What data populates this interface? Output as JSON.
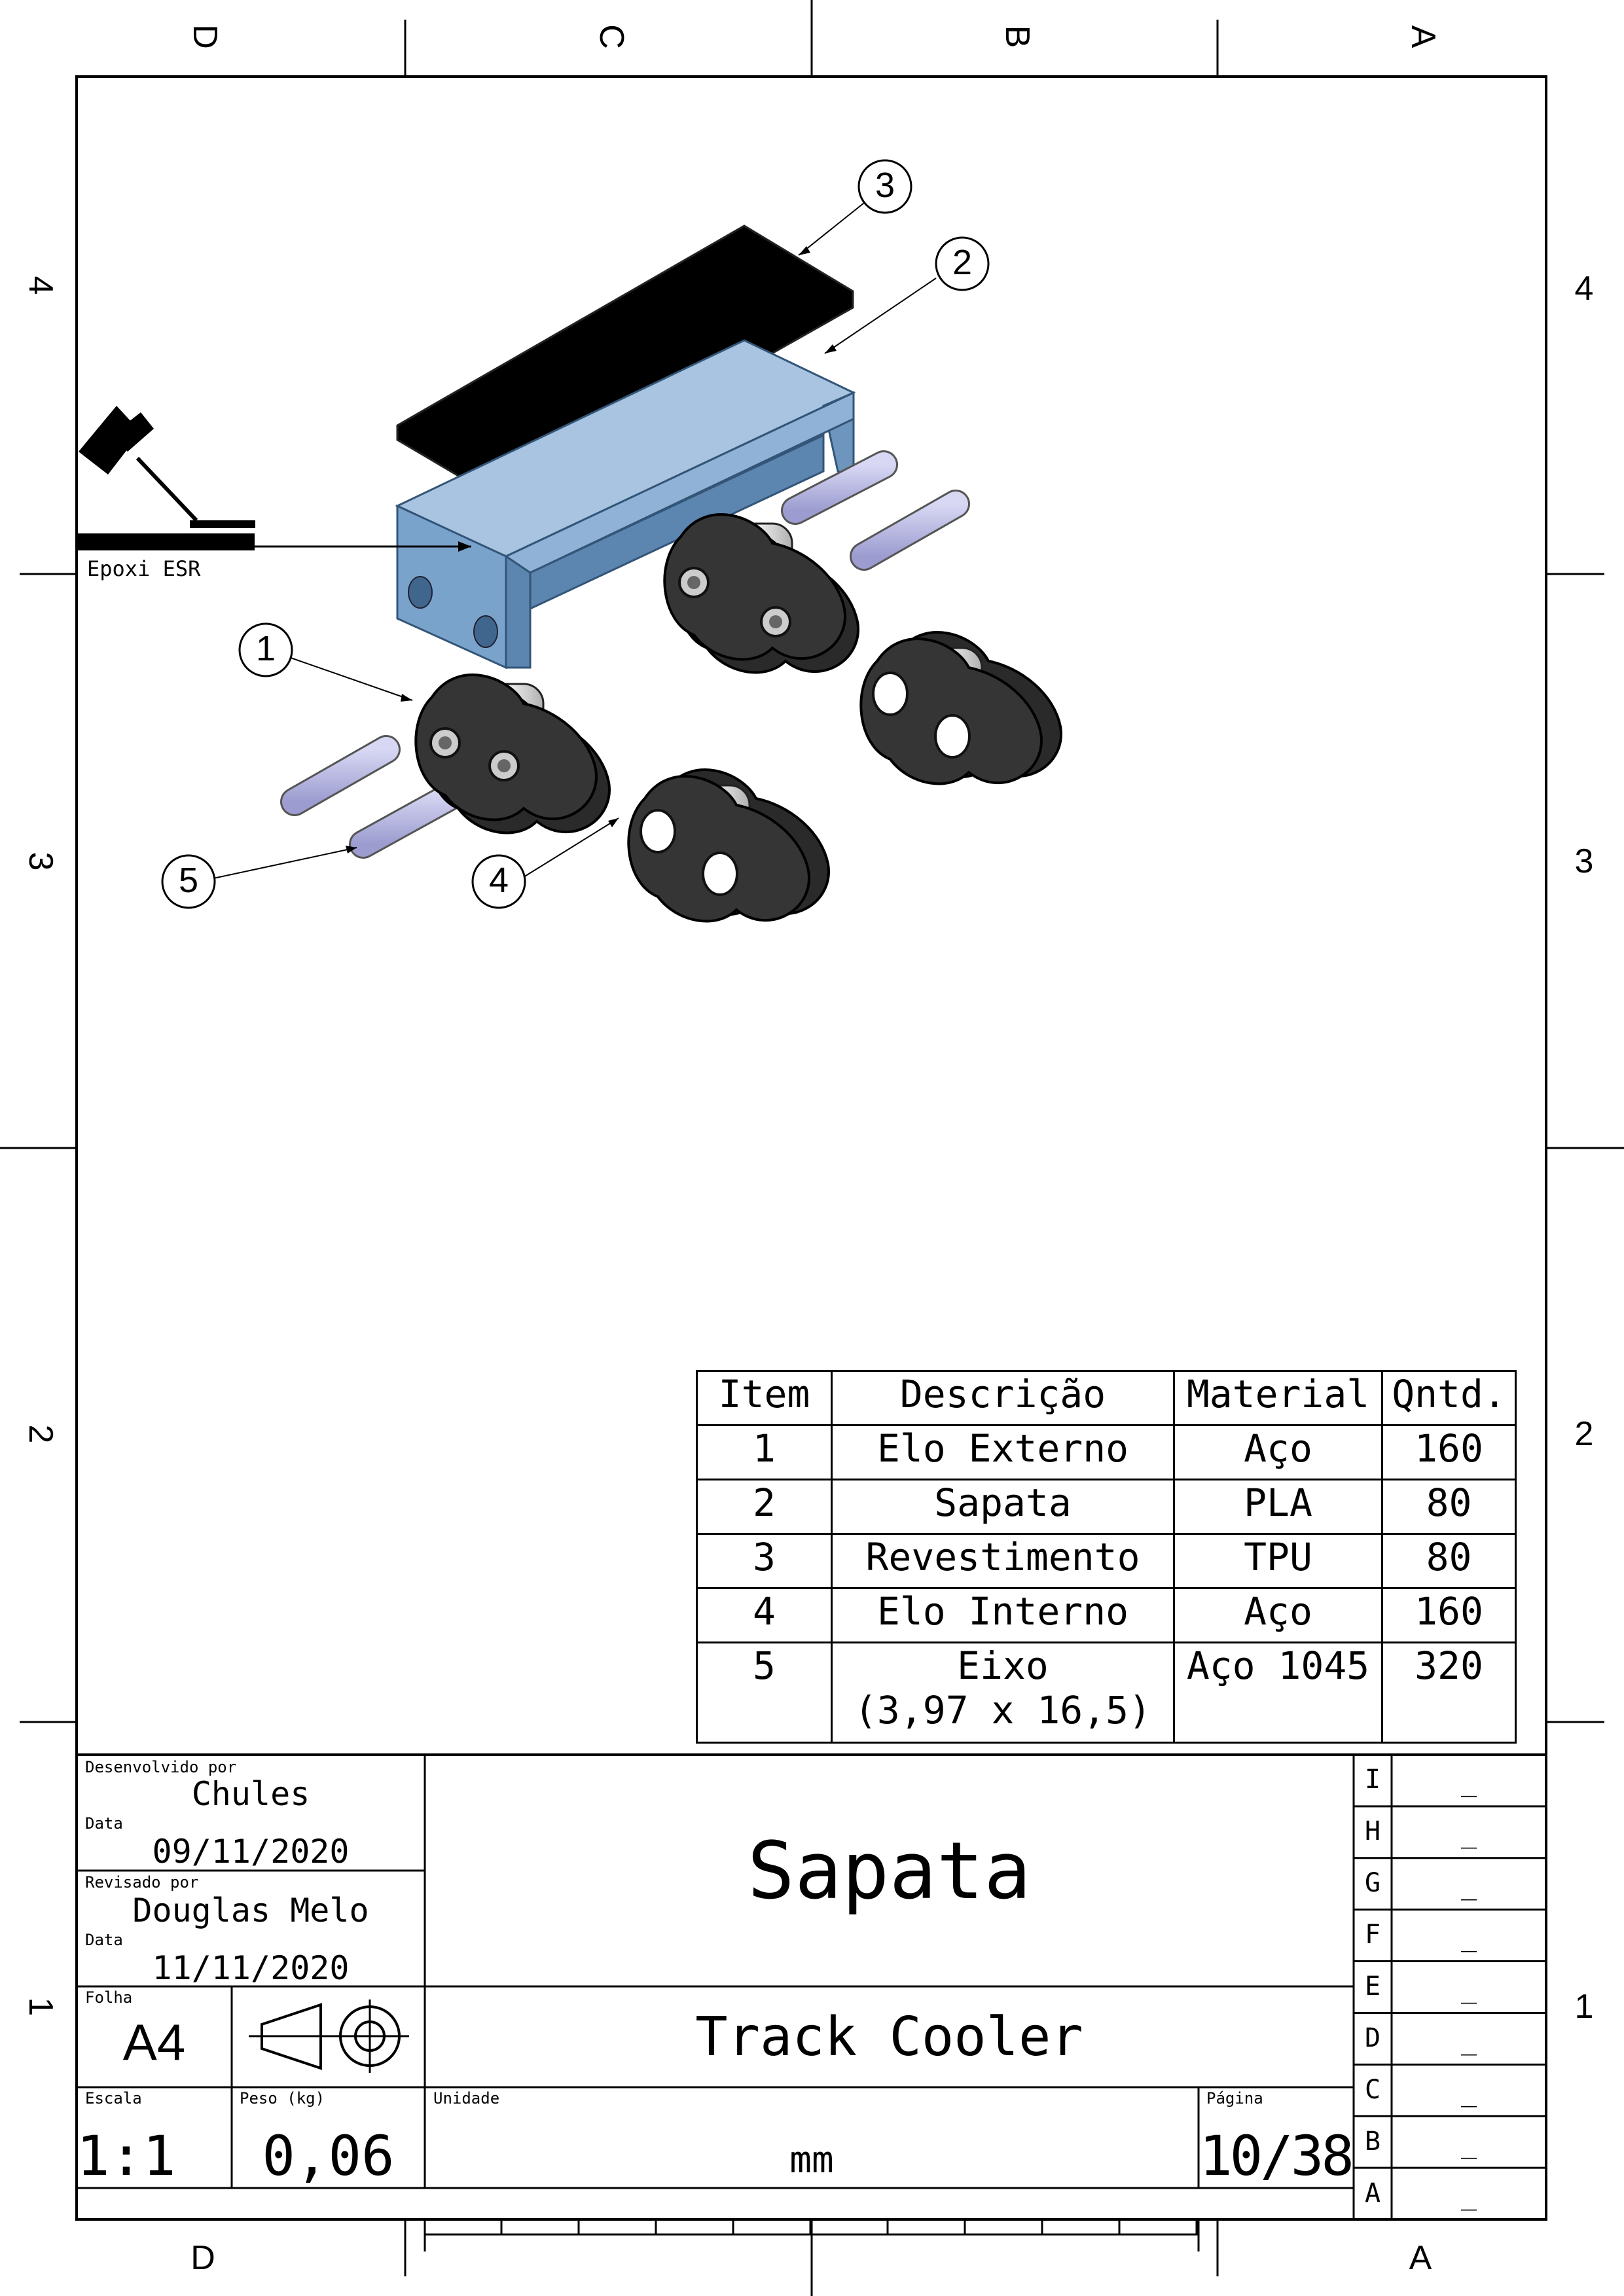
{
  "zones": {
    "top": [
      "D",
      "C",
      "B",
      "A"
    ],
    "bottom": [
      "D",
      "A"
    ],
    "left": [
      "4",
      "3",
      "2",
      "1"
    ],
    "right": [
      "4",
      "3",
      "2",
      "1"
    ]
  },
  "drawing": {
    "callouts": [
      "3",
      "2",
      "1",
      "5",
      "4"
    ],
    "weld_note": "Epoxi ESR"
  },
  "bom": {
    "headers": [
      "Item",
      "Descrição",
      "Material",
      "Qntd."
    ],
    "rows": [
      {
        "item": "1",
        "desc": "Elo Externo",
        "desc2": "",
        "material": "Aço",
        "qty": "160"
      },
      {
        "item": "2",
        "desc": "Sapata",
        "desc2": "",
        "material": "PLA",
        "qty": "80"
      },
      {
        "item": "3",
        "desc": "Revestimento",
        "desc2": "",
        "material": "TPU",
        "qty": "80"
      },
      {
        "item": "4",
        "desc": "Elo Interno",
        "desc2": "",
        "material": "Aço",
        "qty": "160"
      },
      {
        "item": "5",
        "desc": "Eixo",
        "desc2": "(3,97 x 16,5)",
        "material": "Aço 1045",
        "qty": "320"
      }
    ]
  },
  "title_block": {
    "developed_by_label": "Desenvolvido por",
    "developed_by": "Chules",
    "date_label": "Data",
    "date1": "09/11/2020",
    "reviewed_by_label": "Revisado por",
    "reviewed_by": "Douglas Melo",
    "date2": "11/11/2020",
    "sheet_label": "Folha",
    "sheet": "A4",
    "scale_label": "Escala",
    "scale": "1:1",
    "weight_label": "Peso (kg)",
    "weight": "0,06",
    "unit_label": "Unidade",
    "unit": "mm",
    "page_label": "Página",
    "page": "10/38",
    "title": "Sapata",
    "project": "Track Cooler"
  },
  "revisions": [
    {
      "letter": "I",
      "value": "_"
    },
    {
      "letter": "H",
      "value": "_"
    },
    {
      "letter": "G",
      "value": "_"
    },
    {
      "letter": "F",
      "value": "_"
    },
    {
      "letter": "E",
      "value": "_"
    },
    {
      "letter": "D",
      "value": "_"
    },
    {
      "letter": "C",
      "value": "_"
    },
    {
      "letter": "B",
      "value": "_"
    },
    {
      "letter": "A",
      "value": "_"
    }
  ],
  "colors": {
    "sapata": "#7aa3cc",
    "sapata_dark": "#5c85b0",
    "pin": "#b4b4e6",
    "link": "#2a2a2a"
  }
}
